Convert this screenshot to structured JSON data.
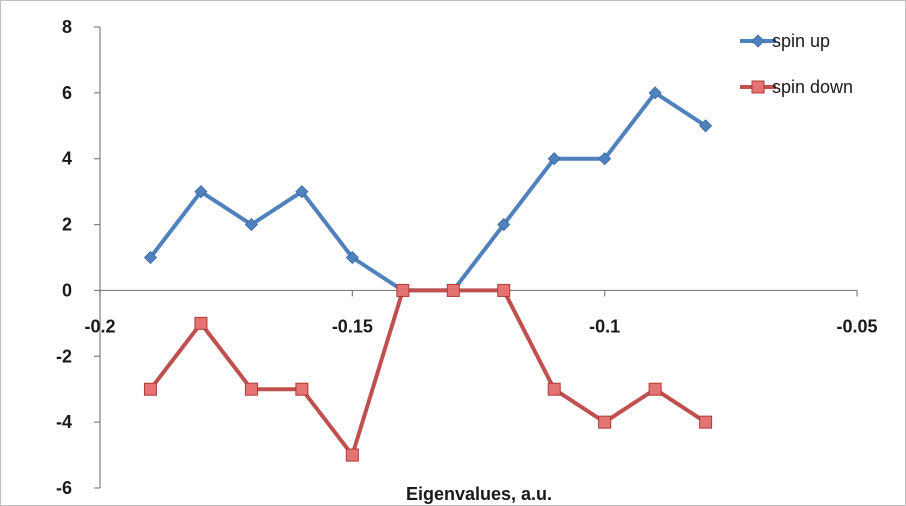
{
  "chart_data": {
    "type": "line",
    "xlabel": "Eigenvalues, a.u.",
    "ylabel": "",
    "xlim": [
      -0.2,
      -0.05
    ],
    "ylim": [
      -6,
      8
    ],
    "x_ticks": [
      -0.2,
      -0.15,
      -0.1,
      -0.05
    ],
    "x_tick_labels": [
      "-0.2",
      "-0.15",
      "-0.1",
      "-0.05"
    ],
    "y_ticks": [
      -6,
      -4,
      -2,
      0,
      2,
      4,
      6,
      8
    ],
    "y_tick_labels": [
      "-6",
      "-4",
      "-2",
      "0",
      "2",
      "4",
      "6",
      "8"
    ],
    "grid": false,
    "legend_position": "top-right",
    "x": [
      -0.19,
      -0.18,
      -0.17,
      -0.16,
      -0.15,
      -0.14,
      -0.13,
      -0.12,
      -0.11,
      -0.1,
      -0.09,
      -0.08
    ],
    "series": [
      {
        "name": "spin up",
        "color": "#4f81bd",
        "marker": "diamond",
        "values": [
          1,
          3,
          2,
          3,
          1,
          0,
          0,
          2,
          4,
          4,
          6,
          5
        ]
      },
      {
        "name": "spin down",
        "color": "#c0504d",
        "marker": "square",
        "values": [
          -3,
          -1,
          -3,
          -3,
          -5,
          0,
          0,
          0,
          -3,
          -4,
          -3,
          -4
        ]
      }
    ]
  }
}
